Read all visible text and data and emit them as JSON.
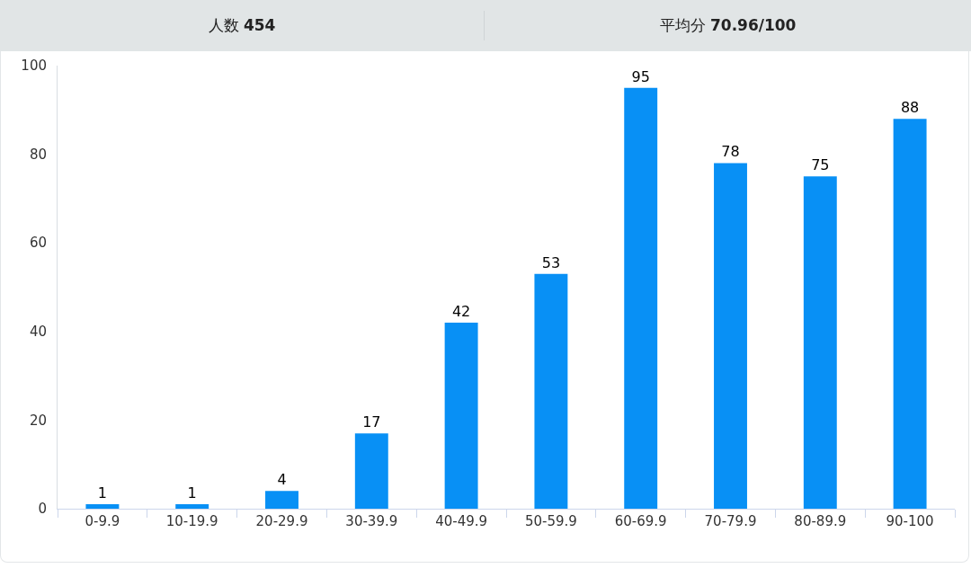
{
  "chart_data": {
    "type": "bar",
    "title": "人数 454",
    "subtitle": "平均分 70.96/100",
    "categories": [
      "0-9.9",
      "10-19.9",
      "20-29.9",
      "30-39.9",
      "40-49.9",
      "50-59.9",
      "60-69.9",
      "70-79.9",
      "80-89.9",
      "90-100"
    ],
    "values": [
      1,
      1,
      4,
      17,
      42,
      53,
      95,
      78,
      75,
      88
    ],
    "color": "#0890f5",
    "ylim": [
      0,
      100
    ],
    "yticks": [
      0,
      20,
      40,
      60,
      80,
      100
    ],
    "data_labels": true
  }
}
